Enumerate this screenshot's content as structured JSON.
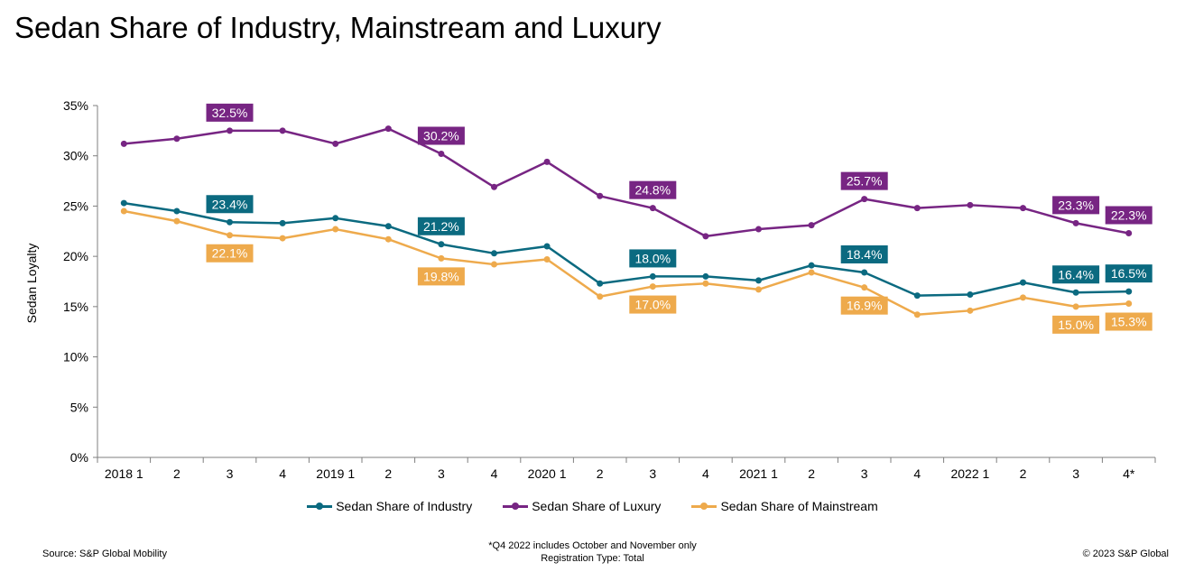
{
  "title": "Sedan Share of Industry, Mainstream and Luxury",
  "source": "Source: S&P Global Mobility",
  "footnote_line1": "*Q4 2022 includes October and November only",
  "footnote_line2": "Registration Type: Total",
  "copyright": "© 2023 S&P Global",
  "chart_data": {
    "type": "line",
    "title": "Sedan Share of Industry, Mainstream and Luxury",
    "xlabel": "",
    "ylabel": "Sedan Loyalty",
    "ylim": [
      0,
      35
    ],
    "yticks": [
      "0%",
      "5%",
      "10%",
      "15%",
      "20%",
      "25%",
      "30%",
      "35%"
    ],
    "categories": [
      "2018 1",
      "2",
      "3",
      "4",
      "2019 1",
      "2",
      "3",
      "4",
      "2020 1",
      "2",
      "3",
      "4",
      "2021 1",
      "2",
      "3",
      "4",
      "2022 1",
      "2",
      "3",
      "4*"
    ],
    "grid": false,
    "legend_position": "bottom",
    "series": [
      {
        "name": "Sedan Share of Industry",
        "color": "#0b6a80",
        "values": [
          25.3,
          24.5,
          23.4,
          23.3,
          23.8,
          23.0,
          21.2,
          20.3,
          21.0,
          17.3,
          18.0,
          18.0,
          17.6,
          19.1,
          18.4,
          16.1,
          16.2,
          17.4,
          16.4,
          16.5
        ],
        "labels": [
          null,
          null,
          "23.4%",
          null,
          null,
          null,
          "21.2%",
          null,
          null,
          null,
          "18.0%",
          null,
          null,
          null,
          "18.4%",
          null,
          null,
          null,
          "16.4%",
          "16.5%"
        ],
        "label_position": "above"
      },
      {
        "name": "Sedan Share of Luxury",
        "color": "#772583",
        "values": [
          31.2,
          31.7,
          32.5,
          32.5,
          31.2,
          32.7,
          30.2,
          26.9,
          29.4,
          26.0,
          24.8,
          22.0,
          22.7,
          23.1,
          25.7,
          24.8,
          25.1,
          24.8,
          23.3,
          22.3
        ],
        "labels": [
          null,
          null,
          "32.5%",
          null,
          null,
          null,
          "30.2%",
          null,
          null,
          null,
          "24.8%",
          null,
          null,
          null,
          "25.7%",
          null,
          null,
          null,
          "23.3%",
          "22.3%"
        ],
        "label_position": "above"
      },
      {
        "name": "Sedan Share of Mainstream",
        "color": "#eeaa4c",
        "values": [
          24.5,
          23.5,
          22.1,
          21.8,
          22.7,
          21.7,
          19.8,
          19.2,
          19.7,
          16.0,
          17.0,
          17.3,
          16.7,
          18.4,
          16.9,
          14.2,
          14.6,
          15.9,
          15.0,
          15.3
        ],
        "labels": [
          null,
          null,
          "22.1%",
          null,
          null,
          null,
          "19.8%",
          null,
          null,
          null,
          "17.0%",
          null,
          null,
          null,
          "16.9%",
          null,
          null,
          null,
          "15.0%",
          "15.3%"
        ],
        "label_position": "below"
      }
    ]
  }
}
